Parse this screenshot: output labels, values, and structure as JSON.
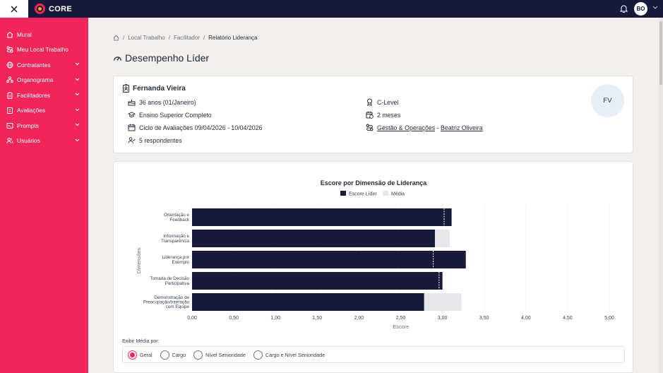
{
  "app": {
    "brand": "CORE",
    "user_initials": "BO"
  },
  "sidebar": {
    "items": [
      {
        "label": "Mural",
        "icon": "home-icon",
        "chevron": false
      },
      {
        "label": "Meu Local Trabalho",
        "icon": "route-icon",
        "chevron": false
      },
      {
        "label": "Contratantes",
        "icon": "globe-icon",
        "chevron": true
      },
      {
        "label": "Organograma",
        "icon": "org-icon",
        "chevron": true
      },
      {
        "label": "Facilitadores",
        "icon": "badge-icon",
        "chevron": true
      },
      {
        "label": "Avaliações",
        "icon": "clipboard-icon",
        "chevron": true
      },
      {
        "label": "Prompts",
        "icon": "terminal-icon",
        "chevron": true
      },
      {
        "label": "Usuários",
        "icon": "users-icon",
        "chevron": true
      }
    ]
  },
  "breadcrumb": {
    "items": [
      "Local Trabalho",
      "Facilitador"
    ],
    "current": "Relatório Liderança"
  },
  "page": {
    "title": "Desempenho Líder"
  },
  "leader": {
    "name": "Fernanda Vieira",
    "age": "36 anos (01/Janeiro)",
    "education": "Ensino Superior Completo",
    "cycle": "Ciclo de Avaliações 09/04/2026 - 10/04/2026",
    "respondents": "5 respondentes",
    "level": "C-Level",
    "tenure": "2 meses",
    "area": "Gestão & Operações",
    "separator": " - ",
    "manager": "Beatriz Oliveira",
    "initials": "FV"
  },
  "chart_data": {
    "type": "bar",
    "orientation": "horizontal",
    "title": "Escore por Dimensão de Liderança",
    "xlabel": "Escore",
    "ylabel": "Dimensões",
    "xlim": [
      0,
      5
    ],
    "xticks": [
      "0,00",
      "0,50",
      "1,00",
      "1,50",
      "2,00",
      "2,50",
      "3,00",
      "3,50",
      "4,00",
      "4,50",
      "5,00"
    ],
    "legend_position": "top",
    "categories": [
      "Orientação e Feedback",
      "Informação e Transparência",
      "Liderança por Exemplo",
      "Tomada de Decisão Participativa",
      "Demonstração de Preocupação/Interação com Equipe"
    ],
    "series": [
      {
        "name": "Escore Líder",
        "color": "#181a3c",
        "values": [
          3.11,
          2.91,
          3.28,
          3.0,
          2.78
        ]
      },
      {
        "name": "Média",
        "color": "#e5e7eb",
        "values": [
          3.02,
          3.09,
          2.89,
          2.96,
          3.23
        ]
      }
    ]
  },
  "filter": {
    "title": "Exibir Média por:",
    "options": [
      "Geral",
      "Cargo",
      "Nível Senioridade",
      "Cargo e Nível Senioridade"
    ],
    "selected": "Geral"
  }
}
